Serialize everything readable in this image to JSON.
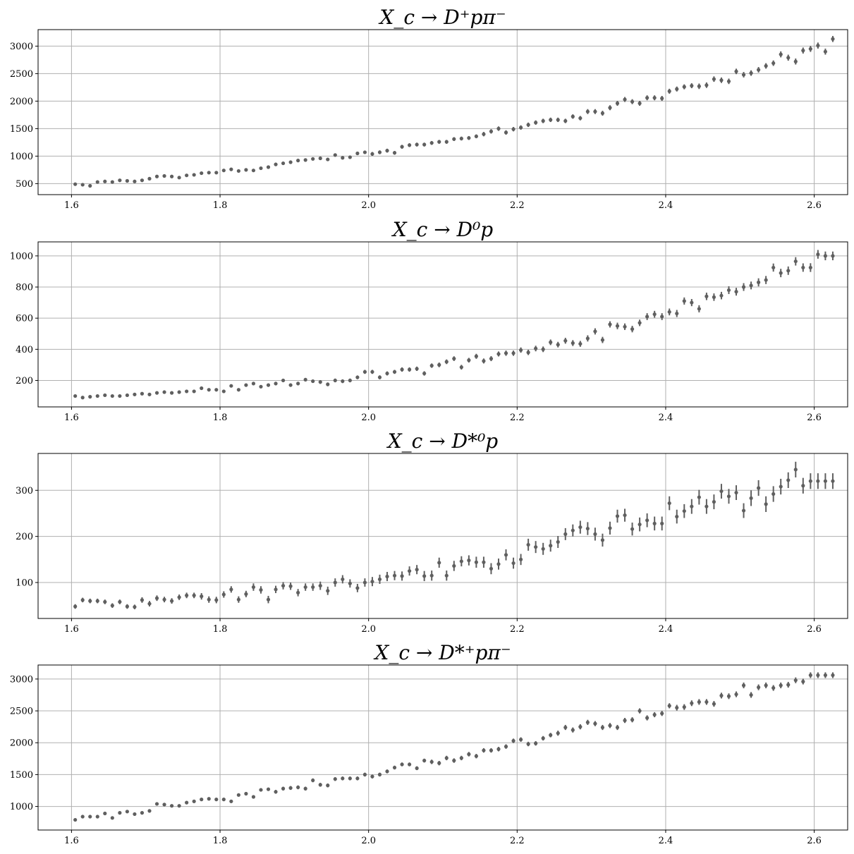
{
  "chart_data": [
    {
      "type": "scatter",
      "title": "X_c → D⁺pπ⁻",
      "xlabel": "",
      "ylabel": "",
      "xlim": [
        1.555,
        2.645
      ],
      "ylim": [
        300,
        3300
      ],
      "grid": true,
      "color": "#5f5f5f",
      "xticks": [
        "1.6",
        "1.8",
        "2.0",
        "2.2",
        "2.4",
        "2.6"
      ],
      "yticks": [
        "500",
        "1000",
        "1500",
        "2000",
        "2500",
        "3000"
      ],
      "x_start": 1.605,
      "x_step": 0.01,
      "values": [
        490,
        480,
        460,
        530,
        540,
        530,
        560,
        550,
        540,
        560,
        590,
        630,
        640,
        630,
        610,
        650,
        660,
        690,
        700,
        700,
        740,
        760,
        730,
        750,
        740,
        780,
        800,
        850,
        870,
        890,
        920,
        930,
        950,
        960,
        940,
        1020,
        970,
        980,
        1050,
        1070,
        1040,
        1070,
        1100,
        1060,
        1170,
        1200,
        1210,
        1210,
        1240,
        1260,
        1260,
        1310,
        1320,
        1330,
        1360,
        1400,
        1450,
        1500,
        1430,
        1490,
        1520,
        1570,
        1610,
        1640,
        1660,
        1660,
        1640,
        1720,
        1690,
        1810,
        1810,
        1780,
        1880,
        1960,
        2030,
        1990,
        1960,
        2060,
        2060,
        2050,
        2180,
        2220,
        2260,
        2280,
        2270,
        2290,
        2400,
        2380,
        2360,
        2540,
        2480,
        2510,
        2570,
        2640,
        2690,
        2850,
        2790,
        2720,
        2920,
        2950,
        3010,
        2900,
        3130
      ],
      "errors": [
        25,
        25,
        25,
        25,
        25,
        25,
        25,
        25,
        25,
        25,
        25,
        25,
        25,
        25,
        25,
        25,
        25,
        25,
        25,
        25,
        25,
        25,
        25,
        25,
        25,
        25,
        25,
        30,
        30,
        30,
        30,
        30,
        30,
        30,
        30,
        30,
        30,
        30,
        30,
        30,
        35,
        35,
        35,
        35,
        35,
        35,
        35,
        35,
        35,
        35,
        35,
        35,
        35,
        35,
        35,
        40,
        40,
        40,
        40,
        40,
        40,
        40,
        40,
        40,
        40,
        40,
        40,
        40,
        40,
        45,
        45,
        45,
        45,
        45,
        45,
        45,
        45,
        45,
        45,
        45,
        45,
        45,
        45,
        45,
        50,
        50,
        50,
        50,
        50,
        50,
        50,
        50,
        50,
        50,
        50,
        55,
        55,
        55,
        55,
        55,
        55,
        55,
        55
      ]
    },
    {
      "type": "scatter",
      "title": "X_c → D⁰p",
      "xlabel": "",
      "ylabel": "",
      "xlim": [
        1.555,
        2.645
      ],
      "ylim": [
        30,
        1090
      ],
      "grid": true,
      "color": "#5f5f5f",
      "xticks": [
        "1.6",
        "1.8",
        "2.0",
        "2.2",
        "2.4",
        "2.6"
      ],
      "yticks": [
        "200",
        "400",
        "600",
        "800",
        "1000"
      ],
      "x_start": 1.605,
      "x_step": 0.01,
      "values": [
        100,
        90,
        95,
        100,
        105,
        100,
        100,
        105,
        110,
        115,
        110,
        120,
        125,
        120,
        125,
        130,
        130,
        150,
        140,
        140,
        130,
        165,
        140,
        170,
        180,
        160,
        170,
        180,
        200,
        170,
        180,
        205,
        195,
        190,
        175,
        200,
        195,
        200,
        220,
        255,
        255,
        220,
        245,
        255,
        270,
        270,
        275,
        245,
        295,
        300,
        320,
        340,
        285,
        330,
        355,
        325,
        340,
        370,
        375,
        375,
        395,
        380,
        405,
        400,
        445,
        430,
        455,
        440,
        435,
        470,
        515,
        460,
        560,
        550,
        545,
        530,
        570,
        610,
        625,
        610,
        640,
        630,
        710,
        700,
        660,
        740,
        735,
        745,
        780,
        770,
        800,
        810,
        830,
        845,
        925,
        890,
        905,
        965,
        925,
        925,
        1010,
        1000,
        1000
      ],
      "errors": [
        8,
        8,
        8,
        8,
        8,
        8,
        8,
        8,
        8,
        8,
        8,
        8,
        8,
        8,
        8,
        9,
        9,
        9,
        9,
        9,
        9,
        10,
        10,
        10,
        10,
        10,
        10,
        11,
        11,
        11,
        11,
        11,
        11,
        12,
        12,
        12,
        12,
        12,
        12,
        13,
        13,
        13,
        13,
        13,
        14,
        14,
        14,
        14,
        14,
        15,
        15,
        15,
        15,
        15,
        16,
        16,
        16,
        16,
        17,
        17,
        17,
        17,
        18,
        18,
        18,
        18,
        19,
        19,
        19,
        20,
        20,
        20,
        20,
        21,
        21,
        21,
        21,
        22,
        22,
        22,
        22,
        23,
        23,
        23,
        23,
        24,
        24,
        24,
        25,
        25,
        25,
        25,
        26,
        26,
        26,
        27,
        27,
        27,
        27,
        28,
        28,
        28,
        28
      ]
    },
    {
      "type": "scatter",
      "title": "X_c → D*⁰p",
      "xlabel": "",
      "ylabel": "",
      "xlim": [
        1.555,
        2.645
      ],
      "ylim": [
        22,
        380
      ],
      "grid": true,
      "color": "#5f5f5f",
      "xticks": [
        "1.6",
        "1.8",
        "2.0",
        "2.2",
        "2.4",
        "2.6"
      ],
      "yticks": [
        "100",
        "200",
        "300"
      ],
      "x_start": 1.605,
      "x_step": 0.01,
      "values": [
        48,
        62,
        60,
        60,
        58,
        50,
        58,
        48,
        47,
        62,
        54,
        66,
        63,
        60,
        68,
        72,
        72,
        70,
        63,
        62,
        74,
        85,
        63,
        75,
        90,
        84,
        63,
        85,
        93,
        92,
        78,
        90,
        90,
        93,
        82,
        100,
        107,
        98,
        88,
        100,
        102,
        107,
        113,
        115,
        114,
        125,
        128,
        114,
        115,
        143,
        115,
        136,
        146,
        148,
        144,
        144,
        130,
        140,
        160,
        142,
        150,
        182,
        177,
        173,
        180,
        188,
        205,
        213,
        220,
        217,
        205,
        192,
        218,
        244,
        246,
        216,
        226,
        235,
        228,
        228,
        272,
        243,
        255,
        265,
        285,
        265,
        275,
        298,
        287,
        295,
        256,
        283,
        305,
        270,
        292,
        308,
        322,
        345,
        310,
        320,
        320,
        320,
        320
      ],
      "errors": [
        5,
        5,
        5,
        5,
        5,
        5,
        5,
        5,
        5,
        6,
        6,
        6,
        6,
        6,
        6,
        6,
        6,
        7,
        7,
        7,
        7,
        7,
        7,
        7,
        8,
        8,
        8,
        8,
        8,
        8,
        8,
        8,
        8,
        9,
        9,
        9,
        9,
        9,
        9,
        9,
        10,
        10,
        10,
        10,
        10,
        10,
        10,
        11,
        11,
        11,
        11,
        11,
        11,
        11,
        12,
        12,
        12,
        12,
        12,
        12,
        12,
        13,
        13,
        13,
        13,
        13,
        13,
        13,
        14,
        14,
        14,
        14,
        14,
        14,
        14,
        14,
        15,
        15,
        15,
        15,
        15,
        15,
        15,
        16,
        16,
        16,
        16,
        16,
        16,
        16,
        16,
        17,
        17,
        17,
        17,
        17,
        17,
        17,
        17,
        17,
        17,
        17,
        17
      ]
    },
    {
      "type": "scatter",
      "title": "X_c → D*⁺pπ⁻",
      "xlabel": "",
      "ylabel": "",
      "xlim": [
        1.555,
        2.645
      ],
      "ylim": [
        630,
        3220
      ],
      "grid": true,
      "color": "#5f5f5f",
      "xticks": [
        "1.6",
        "1.8",
        "2.0",
        "2.2",
        "2.4",
        "2.6"
      ],
      "yticks": [
        "1000",
        "1500",
        "2000",
        "2500",
        "3000"
      ],
      "x_start": 1.605,
      "x_step": 0.01,
      "values": [
        790,
        840,
        840,
        840,
        890,
        820,
        900,
        920,
        880,
        900,
        930,
        1040,
        1030,
        1010,
        1010,
        1060,
        1080,
        1110,
        1120,
        1110,
        1110,
        1080,
        1180,
        1200,
        1150,
        1260,
        1270,
        1230,
        1280,
        1290,
        1300,
        1280,
        1410,
        1340,
        1330,
        1430,
        1440,
        1440,
        1440,
        1500,
        1470,
        1500,
        1550,
        1610,
        1660,
        1660,
        1600,
        1720,
        1700,
        1680,
        1760,
        1720,
        1760,
        1820,
        1790,
        1880,
        1880,
        1900,
        1940,
        2030,
        2050,
        1980,
        1990,
        2070,
        2120,
        2150,
        2240,
        2200,
        2250,
        2320,
        2300,
        2240,
        2270,
        2240,
        2350,
        2360,
        2500,
        2390,
        2440,
        2460,
        2580,
        2550,
        2560,
        2620,
        2640,
        2640,
        2610,
        2740,
        2730,
        2760,
        2900,
        2750,
        2870,
        2900,
        2860,
        2900,
        2910,
        2980,
        2960,
        3060,
        3060,
        3060,
        3060
      ],
      "errors": [
        25,
        25,
        25,
        25,
        25,
        25,
        25,
        25,
        25,
        25,
        25,
        25,
        25,
        25,
        25,
        25,
        25,
        25,
        25,
        25,
        25,
        25,
        25,
        25,
        25,
        25,
        25,
        30,
        30,
        30,
        30,
        30,
        30,
        30,
        30,
        30,
        30,
        30,
        30,
        30,
        30,
        30,
        30,
        30,
        30,
        30,
        30,
        30,
        35,
        35,
        35,
        35,
        35,
        35,
        35,
        35,
        35,
        35,
        35,
        35,
        35,
        35,
        35,
        35,
        35,
        40,
        40,
        40,
        40,
        40,
        40,
        40,
        40,
        40,
        40,
        40,
        40,
        40,
        40,
        40,
        40,
        45,
        45,
        45,
        45,
        45,
        45,
        45,
        45,
        45,
        45,
        45,
        45,
        45,
        45,
        45,
        45,
        45,
        45,
        45,
        45,
        45,
        45
      ]
    }
  ]
}
